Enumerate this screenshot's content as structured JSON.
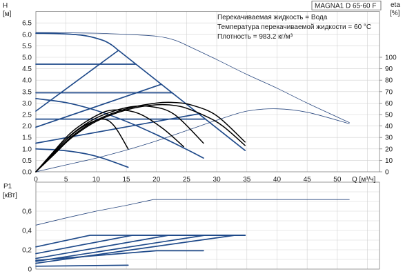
{
  "colors": {
    "thin": "#27467e",
    "thick": "#1f4a8a",
    "eta": "#000000",
    "grid": "#d2d2d2",
    "frame": "#7f7f7f"
  },
  "chart_data": [
    {
      "type": "line",
      "title": "MAGNA1 D 65-60 F",
      "annotations": [
        "Перекачиваемая жидкость = Вода",
        "Температура перекачиваемой жидкости = 60 °C",
        "Плотность = 983.2 кг/м³"
      ],
      "ylabel": "H",
      "yunit": "[м]",
      "y2label": "eta",
      "y2unit": "[%]",
      "xlabel": "Q [м³/ч]",
      "xlim": [
        0,
        57
      ],
      "ylim": [
        0,
        7
      ],
      "y2lim": [
        0,
        140
      ],
      "grid": true,
      "xticks": [
        {
          "v": 0,
          "label": "0"
        },
        {
          "v": 5,
          "label": "5"
        },
        {
          "v": 10,
          "label": "10"
        },
        {
          "v": 15,
          "label": "15"
        },
        {
          "v": 20,
          "label": "20"
        },
        {
          "v": 25,
          "label": "25"
        },
        {
          "v": 30,
          "label": "30"
        },
        {
          "v": 35,
          "label": "35"
        },
        {
          "v": 40,
          "label": "40"
        },
        {
          "v": 45,
          "label": "45"
        },
        {
          "v": 50,
          "label": "50"
        }
      ],
      "yticks": [
        {
          "v": 0,
          "label": "0.0"
        },
        {
          "v": 0.5,
          "label": "0.5"
        },
        {
          "v": 1,
          "label": "1.0"
        },
        {
          "v": 1.5,
          "label": "1.5"
        },
        {
          "v": 2,
          "label": "2.0"
        },
        {
          "v": 2.5,
          "label": "2.5"
        },
        {
          "v": 3,
          "label": "3.0"
        },
        {
          "v": 3.5,
          "label": "3.5"
        },
        {
          "v": 4,
          "label": "4.0"
        },
        {
          "v": 4.5,
          "label": "4.5"
        },
        {
          "v": 5,
          "label": "5.0"
        },
        {
          "v": 5.5,
          "label": "5.5"
        },
        {
          "v": 6,
          "label": "6.0"
        },
        {
          "v": 6.5,
          "label": "6.5"
        }
      ],
      "y2ticks": [
        {
          "v": 0,
          "label": "0"
        },
        {
          "v": 10,
          "label": "10"
        },
        {
          "v": 20,
          "label": "20"
        },
        {
          "v": 30,
          "label": "30"
        },
        {
          "v": 40,
          "label": "40"
        },
        {
          "v": 50,
          "label": "50"
        },
        {
          "v": 60,
          "label": "60"
        },
        {
          "v": 70,
          "label": "70"
        },
        {
          "v": 80,
          "label": "80"
        },
        {
          "v": 90,
          "label": "90"
        },
        {
          "v": 100,
          "label": "100"
        }
      ],
      "series": [
        {
          "axis": "y",
          "style": "thin",
          "smooth": true,
          "points": [
            [
              0,
              6.08
            ],
            [
              5,
              6.07
            ],
            [
              10,
              6.05
            ],
            [
              15,
              6.0
            ],
            [
              20,
              5.92
            ],
            [
              23,
              5.75
            ],
            [
              26,
              5.4
            ],
            [
              30,
              4.9
            ],
            [
              35,
              4.25
            ],
            [
              40,
              3.65
            ],
            [
              45,
              3.0
            ],
            [
              52,
              2.15
            ]
          ]
        },
        {
          "axis": "y",
          "style": "thick",
          "smooth": true,
          "points": [
            [
              0,
              6.05
            ],
            [
              4,
              6.03
            ],
            [
              8,
              5.95
            ],
            [
              11,
              5.75
            ],
            [
              12.5,
              5.55
            ],
            [
              13.7,
              5.3
            ]
          ]
        },
        {
          "axis": "y",
          "style": "thick",
          "smooth": false,
          "points": [
            [
              13.7,
              5.3
            ],
            [
              34.7,
              0.93
            ]
          ]
        },
        {
          "axis": "y",
          "style": "thick",
          "smooth": false,
          "points": [
            [
              0,
              4.7
            ],
            [
              16.5,
              4.7
            ]
          ]
        },
        {
          "axis": "y",
          "style": "thick",
          "smooth": false,
          "points": [
            [
              0,
              3.45
            ],
            [
              22.6,
              3.45
            ]
          ]
        },
        {
          "axis": "y",
          "style": "thick",
          "smooth": false,
          "points": [
            [
              0,
              2.3
            ],
            [
              28.1,
              2.3
            ]
          ]
        },
        {
          "axis": "y",
          "style": "thick",
          "smooth": false,
          "points": [
            [
              0,
              2.65
            ],
            [
              13.7,
              5.3
            ]
          ]
        },
        {
          "axis": "y",
          "style": "thick",
          "smooth": false,
          "points": [
            [
              0,
              1.95
            ],
            [
              20.8,
              3.82
            ]
          ]
        },
        {
          "axis": "y",
          "style": "thick",
          "smooth": false,
          "points": [
            [
              0,
              1.25
            ],
            [
              27.0,
              2.53
            ]
          ]
        },
        {
          "axis": "y",
          "style": "thick",
          "smooth": true,
          "points": [
            [
              0,
              3.2
            ],
            [
              5,
              3.02
            ],
            [
              10,
              2.68
            ],
            [
              15,
              2.2
            ],
            [
              20,
              1.62
            ],
            [
              25,
              0.98
            ],
            [
              27.8,
              0.6
            ]
          ]
        },
        {
          "axis": "y",
          "style": "thick",
          "smooth": true,
          "points": [
            [
              0,
              1.0
            ],
            [
              5,
              0.92
            ],
            [
              10,
              0.68
            ],
            [
              15.3,
              0.2
            ]
          ]
        },
        {
          "axis": "y2",
          "style": "thin",
          "smooth": true,
          "points": [
            [
              0,
              0
            ],
            [
              5,
              6
            ],
            [
              10,
              12
            ],
            [
              15,
              19
            ],
            [
              20,
              27
            ],
            [
              25,
              36
            ],
            [
              30,
              45
            ],
            [
              35,
              53
            ],
            [
              40,
              55
            ],
            [
              45,
              52
            ],
            [
              52,
              42
            ]
          ]
        },
        {
          "axis": "y2",
          "style": "eta",
          "smooth": true,
          "points": [
            [
              0,
              0
            ],
            [
              3,
              16
            ],
            [
              6,
              31
            ],
            [
              10,
              45
            ],
            [
              15,
              55
            ],
            [
              20,
              60
            ],
            [
              23,
              60.5
            ],
            [
              26,
              58
            ],
            [
              30,
              49
            ],
            [
              34.7,
              26
            ]
          ]
        },
        {
          "axis": "y2",
          "style": "eta",
          "smooth": true,
          "points": [
            [
              0,
              0
            ],
            [
              3,
              15
            ],
            [
              6,
              30
            ],
            [
              10,
              44
            ],
            [
              15,
              54
            ],
            [
              20,
              58.5
            ],
            [
              24,
              57
            ],
            [
              28,
              49
            ],
            [
              31,
              40
            ],
            [
              34.7,
              23
            ]
          ]
        },
        {
          "axis": "y2",
          "style": "eta",
          "smooth": true,
          "points": [
            [
              0,
              0
            ],
            [
              3,
              17
            ],
            [
              6,
              33
            ],
            [
              10,
              47
            ],
            [
              15,
              56
            ],
            [
              19,
              57
            ],
            [
              23,
              50
            ],
            [
              27.8,
              25
            ]
          ]
        },
        {
          "axis": "y2",
          "style": "eta",
          "smooth": true,
          "points": [
            [
              0,
              0
            ],
            [
              3,
              18
            ],
            [
              6,
              35
            ],
            [
              10,
              49
            ],
            [
              13,
              54
            ],
            [
              17,
              51
            ],
            [
              21,
              38
            ],
            [
              24.5,
              22
            ]
          ]
        },
        {
          "axis": "y2",
          "style": "eta",
          "smooth": true,
          "points": [
            [
              0,
              0
            ],
            [
              2.5,
              14
            ],
            [
              5,
              28
            ],
            [
              8,
              40
            ],
            [
              11,
              46
            ],
            [
              13,
              40
            ],
            [
              15.3,
              20
            ]
          ]
        }
      ]
    },
    {
      "type": "line",
      "ylabel": "P1",
      "yunit": "[кВт]",
      "xlim": [
        0,
        57
      ],
      "ylim": [
        0,
        0.9
      ],
      "grid": true,
      "yticks": [
        {
          "v": 0,
          "label": "0"
        },
        {
          "v": 0.2,
          "label": "0,2"
        },
        {
          "v": 0.4,
          "label": "0,4"
        },
        {
          "v": 0.6,
          "label": "0,6"
        }
      ],
      "series": [
        {
          "axis": "y",
          "style": "thin",
          "smooth": false,
          "points": [
            [
              0,
              0.455
            ],
            [
              5,
              0.53
            ],
            [
              10,
              0.6
            ],
            [
              15,
              0.66
            ],
            [
              19.5,
              0.72
            ],
            [
              52,
              0.72
            ]
          ]
        },
        {
          "axis": "y",
          "style": "thick",
          "smooth": false,
          "points": [
            [
              0,
              0.23
            ],
            [
              9,
              0.35
            ],
            [
              34.7,
              0.35
            ]
          ]
        },
        {
          "axis": "y",
          "style": "thick",
          "smooth": false,
          "points": [
            [
              0,
              0.16
            ],
            [
              16,
              0.35
            ],
            [
              34.7,
              0.35
            ]
          ]
        },
        {
          "axis": "y",
          "style": "thick",
          "smooth": false,
          "points": [
            [
              0,
              0.11
            ],
            [
              22,
              0.35
            ],
            [
              34.7,
              0.35
            ]
          ]
        },
        {
          "axis": "y",
          "style": "thick",
          "smooth": false,
          "points": [
            [
              0,
              0.08
            ],
            [
              28,
              0.35
            ],
            [
              34.7,
              0.35
            ]
          ]
        },
        {
          "axis": "y",
          "style": "thick",
          "smooth": false,
          "points": [
            [
              0,
              0.06
            ],
            [
              33,
              0.35
            ],
            [
              34.7,
              0.35
            ]
          ]
        },
        {
          "axis": "y",
          "style": "thick",
          "smooth": false,
          "points": [
            [
              0,
              0.09
            ],
            [
              20,
              0.19
            ],
            [
              27.8,
              0.19
            ]
          ]
        },
        {
          "axis": "y",
          "style": "thick",
          "smooth": false,
          "points": [
            [
              0,
              0.03
            ],
            [
              15.3,
              0.04
            ]
          ]
        }
      ]
    }
  ]
}
